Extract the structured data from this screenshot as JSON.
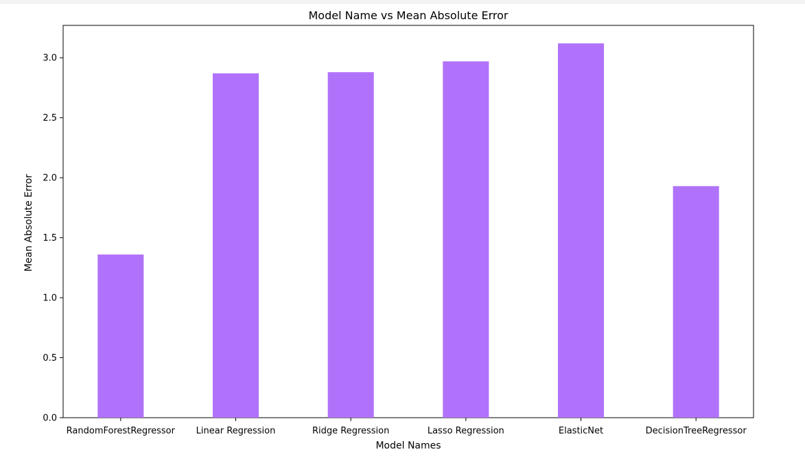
{
  "chart_data": {
    "type": "bar",
    "title": "Model Name vs Mean Absolute Error",
    "xlabel": "Model Names",
    "ylabel": "Mean Absolute Error",
    "categories": [
      "RandomForestRegressor",
      "Linear Regression",
      "Ridge Regression",
      "Lasso Regression",
      "ElasticNet",
      "DecisionTreeRegressor"
    ],
    "values": [
      1.36,
      2.87,
      2.88,
      2.97,
      3.12,
      1.93
    ],
    "ylim": [
      0,
      3.27
    ],
    "yticks": [
      0.0,
      0.5,
      1.0,
      1.5,
      2.0,
      2.5,
      3.0
    ],
    "ytick_labels": [
      "0.0",
      "0.5",
      "1.0",
      "1.5",
      "2.0",
      "2.5",
      "3.0"
    ],
    "bar_color": "#b072fa",
    "grid": false,
    "legend": "none"
  }
}
